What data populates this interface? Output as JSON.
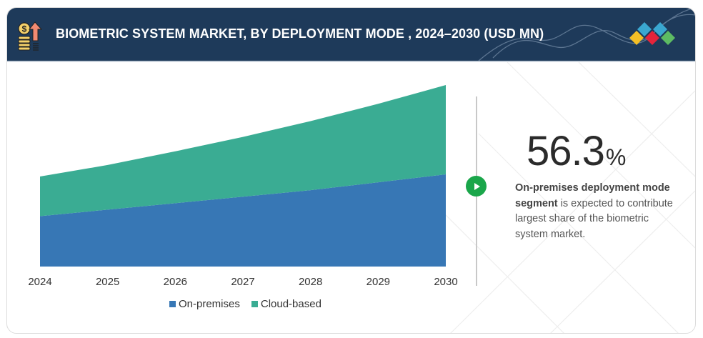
{
  "header": {
    "title": "BIOMETRIC SYSTEM MARKET, BY DEPLOYMENT MODE , 2024–2030 (USD MN)",
    "icon": "money-growth-icon",
    "logo": "brand-diamonds-logo"
  },
  "colors": {
    "header_bg": "#1e3a5a",
    "on_premises": "#3777b5",
    "cloud_based": "#3aac93",
    "play_button": "#1aa64a"
  },
  "chart_data": {
    "type": "area",
    "stacked": true,
    "title": "BIOMETRIC SYSTEM MARKET, BY DEPLOYMENT MODE , 2024–2030 (USD MN)",
    "xlabel": "",
    "ylabel": "",
    "y_axis_labels_shown": false,
    "grid": false,
    "legend_position": "bottom",
    "categories": [
      "2024",
      "2025",
      "2026",
      "2027",
      "2028",
      "2029",
      "2030"
    ],
    "series": [
      {
        "name": "On-premises",
        "color": "#3777b5",
        "values": [
          70,
          79,
          88,
          97,
          106,
          117,
          128
        ]
      },
      {
        "name": "Cloud-based",
        "color": "#3aac93",
        "values": [
          55,
          62,
          72,
          83,
          96,
          109,
          124
        ]
      }
    ],
    "value_note": "relative index estimated from area heights; no y-axis scale shown",
    "ylim": [
      0,
      260
    ]
  },
  "legend": {
    "items": [
      {
        "label": "On-premises",
        "color": "#3777b5"
      },
      {
        "label": "Cloud-based",
        "color": "#3aac93"
      }
    ]
  },
  "callout": {
    "value": "56.3",
    "unit": "%",
    "bold_text": "On-premises deployment mode segment",
    "text": " is expected to contribute largest share of the biometric system market.",
    "button_icon": "play-icon"
  }
}
